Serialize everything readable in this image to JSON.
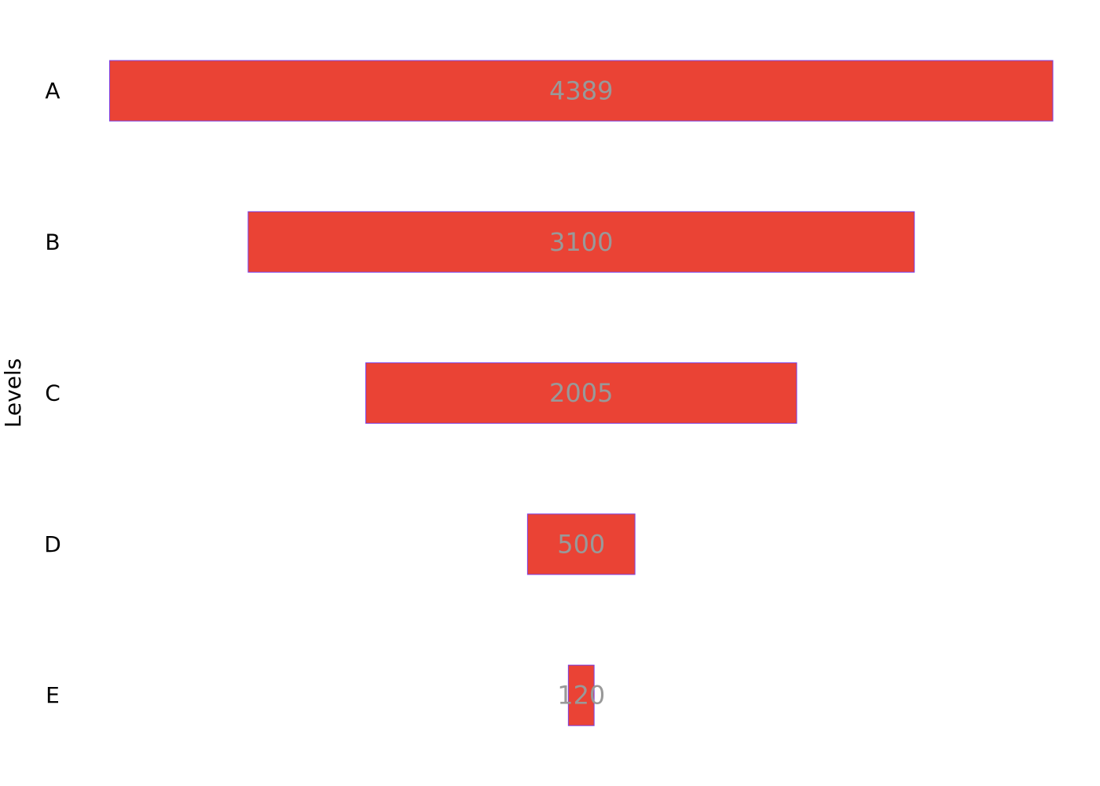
{
  "chart_data": {
    "type": "funnel",
    "ylabel": "Levels",
    "categories": [
      "A",
      "B",
      "C",
      "D",
      "E"
    ],
    "values": [
      4389,
      3100,
      2005,
      500,
      120
    ],
    "xlim": [
      -2194.5,
      2194.5
    ],
    "grid": false,
    "legend": "none",
    "colors": {
      "bar_fill": "#ea4335",
      "bar_stroke": "#7b3fe4",
      "label_text": "#999999",
      "axis_text": "#000000"
    }
  }
}
